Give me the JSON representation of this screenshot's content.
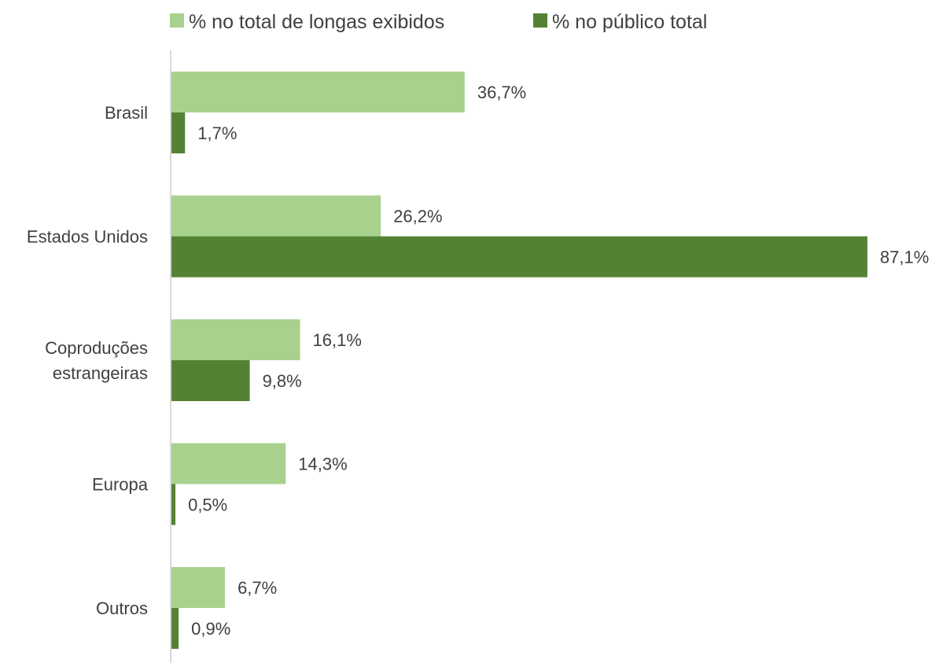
{
  "chart_data": {
    "type": "bar",
    "orientation": "horizontal",
    "categories": [
      [
        "Brasil"
      ],
      [
        "Estados Unidos"
      ],
      [
        "Coproduções",
        "estrangeiras"
      ],
      [
        "Europa"
      ],
      [
        "Outros"
      ]
    ],
    "series": [
      {
        "name": "% no total de longas exibidos",
        "values": [
          36.7,
          26.2,
          16.1,
          14.3,
          6.7
        ],
        "labels": [
          "36,7%",
          "26,2%",
          "16,1%",
          "14,3%",
          "6,7%"
        ],
        "color": "#a9d18e"
      },
      {
        "name": "% no público total",
        "values": [
          1.7,
          87.1,
          9.8,
          0.5,
          0.9
        ],
        "labels": [
          "1,7%",
          "87,1%",
          "9,8%",
          "0,5%",
          "0,9%"
        ],
        "color": "#548235"
      }
    ],
    "xlim": [
      0,
      100
    ],
    "grid": false,
    "legend": "top",
    "data_labels": true
  },
  "colors": {
    "axis": "#d9d9d9",
    "text": "#404040"
  }
}
